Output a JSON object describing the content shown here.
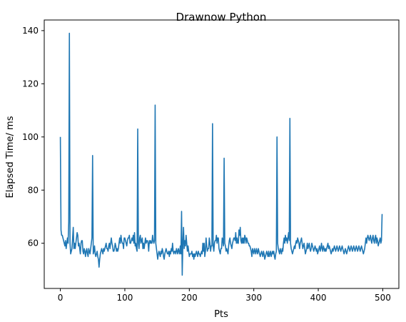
{
  "chart_data": {
    "type": "line",
    "title": "Drawnow Python",
    "xlabel": "Pts",
    "ylabel": "Elapsed Time/ ms",
    "xlim": [
      -25,
      525
    ],
    "ylim": [
      43,
      144
    ],
    "xticks": [
      0,
      100,
      200,
      300,
      400,
      500
    ],
    "yticks": [
      60,
      80,
      100,
      120,
      140
    ],
    "grid": false,
    "legend": "none",
    "series": [
      {
        "color": "#1f77b4",
        "x_start": 0,
        "x_step": 1,
        "values": [
          100,
          65,
          63,
          63,
          62,
          61,
          60,
          59,
          61,
          58,
          60,
          62,
          60,
          68,
          139,
          60,
          56,
          57,
          58,
          62,
          66,
          58,
          60,
          58,
          60,
          62,
          64,
          63,
          59,
          60,
          58,
          56,
          60,
          61,
          61,
          57,
          56,
          58,
          57,
          55,
          57,
          58,
          56,
          55,
          58,
          57,
          56,
          58,
          60,
          62,
          93,
          56,
          57,
          59,
          56,
          55,
          56,
          57,
          55,
          54,
          51,
          54,
          56,
          57,
          58,
          57,
          56,
          58,
          57,
          58,
          59,
          60,
          58,
          58,
          57,
          59,
          60,
          58,
          60,
          62,
          60,
          59,
          57,
          57,
          58,
          60,
          59,
          57,
          58,
          57,
          58,
          60,
          62,
          60,
          63,
          61,
          60,
          60,
          58,
          62,
          62,
          61,
          60,
          59,
          61,
          62,
          62,
          63,
          60,
          60,
          61,
          62,
          61,
          63,
          60,
          64,
          59,
          60,
          58,
          57,
          103,
          60,
          58,
          62,
          63,
          60,
          61,
          62,
          58,
          60,
          58,
          60,
          62,
          60,
          61,
          61,
          60,
          57,
          61,
          60,
          61,
          60,
          60,
          63,
          61,
          60,
          61,
          112,
          60,
          58,
          56,
          54,
          56,
          57,
          56,
          55,
          57,
          56,
          58,
          57,
          55,
          54,
          56,
          57,
          58,
          57,
          56,
          56,
          57,
          55,
          57,
          56,
          58,
          57,
          60,
          57,
          56,
          57,
          57,
          56,
          58,
          57,
          56,
          58,
          57,
          56,
          59,
          56,
          72,
          48,
          60,
          66,
          58,
          61,
          59,
          63,
          60,
          57,
          59,
          57,
          55,
          56,
          56,
          56,
          57,
          55,
          56,
          54,
          56,
          55,
          56,
          57,
          56,
          55,
          57,
          56,
          56,
          55,
          56,
          57,
          56,
          60,
          57,
          60,
          55,
          57,
          62,
          59,
          57,
          58,
          58,
          62,
          60,
          57,
          59,
          59,
          105,
          59,
          57,
          60,
          61,
          61,
          63,
          60,
          62,
          62,
          58,
          57,
          56,
          58,
          58,
          62,
          61,
          59,
          92,
          60,
          59,
          57,
          58,
          57,
          56,
          59,
          61,
          62,
          60,
          59,
          58,
          60,
          61,
          62,
          62,
          61,
          64,
          60,
          62,
          60,
          60,
          65,
          63,
          66,
          61,
          60,
          62,
          60,
          62,
          60,
          63,
          62,
          60,
          62,
          61,
          60,
          60,
          59,
          59,
          58,
          57,
          55,
          58,
          57,
          56,
          58,
          57,
          56,
          58,
          57,
          56,
          58,
          57,
          56,
          55,
          56,
          57,
          56,
          55,
          57,
          56,
          54,
          55,
          56,
          57,
          56,
          55,
          57,
          55,
          56,
          57,
          55,
          56,
          57,
          56,
          57,
          55,
          54,
          56,
          57,
          100,
          60,
          58,
          57,
          56,
          58,
          57,
          56,
          58,
          57,
          60,
          62,
          60,
          63,
          61,
          62,
          60,
          62,
          64,
          61,
          107,
          60,
          58,
          57,
          56,
          57,
          58,
          59,
          58,
          60,
          61,
          60,
          62,
          61,
          60,
          58,
          60,
          61,
          62,
          60,
          58,
          59,
          60,
          58,
          56,
          57,
          58,
          60,
          58,
          59,
          60,
          58,
          57,
          58,
          60,
          59,
          58,
          57,
          58,
          59,
          58,
          57,
          58,
          56,
          57,
          58,
          59,
          57,
          58,
          60,
          58,
          57,
          59,
          58,
          57,
          58,
          57,
          58,
          59,
          60,
          58,
          59,
          58,
          57,
          56,
          57,
          58,
          57,
          58,
          59,
          58,
          57,
          58,
          59,
          58,
          57,
          58,
          59,
          58,
          57,
          58,
          59,
          58,
          57,
          56,
          57,
          58,
          57,
          56,
          57,
          58,
          59,
          58,
          57,
          58,
          59,
          58,
          57,
          58,
          59,
          58,
          57,
          58,
          59,
          58,
          57,
          58,
          59,
          58,
          57,
          58,
          59,
          58,
          57,
          56,
          57,
          58,
          60,
          62,
          60,
          62,
          63,
          62,
          61,
          62,
          63,
          61,
          60,
          62,
          63,
          61,
          60,
          62,
          63,
          60,
          62,
          61,
          59,
          60,
          61,
          62,
          60,
          61,
          71
        ]
      }
    ],
    "annotations": []
  }
}
